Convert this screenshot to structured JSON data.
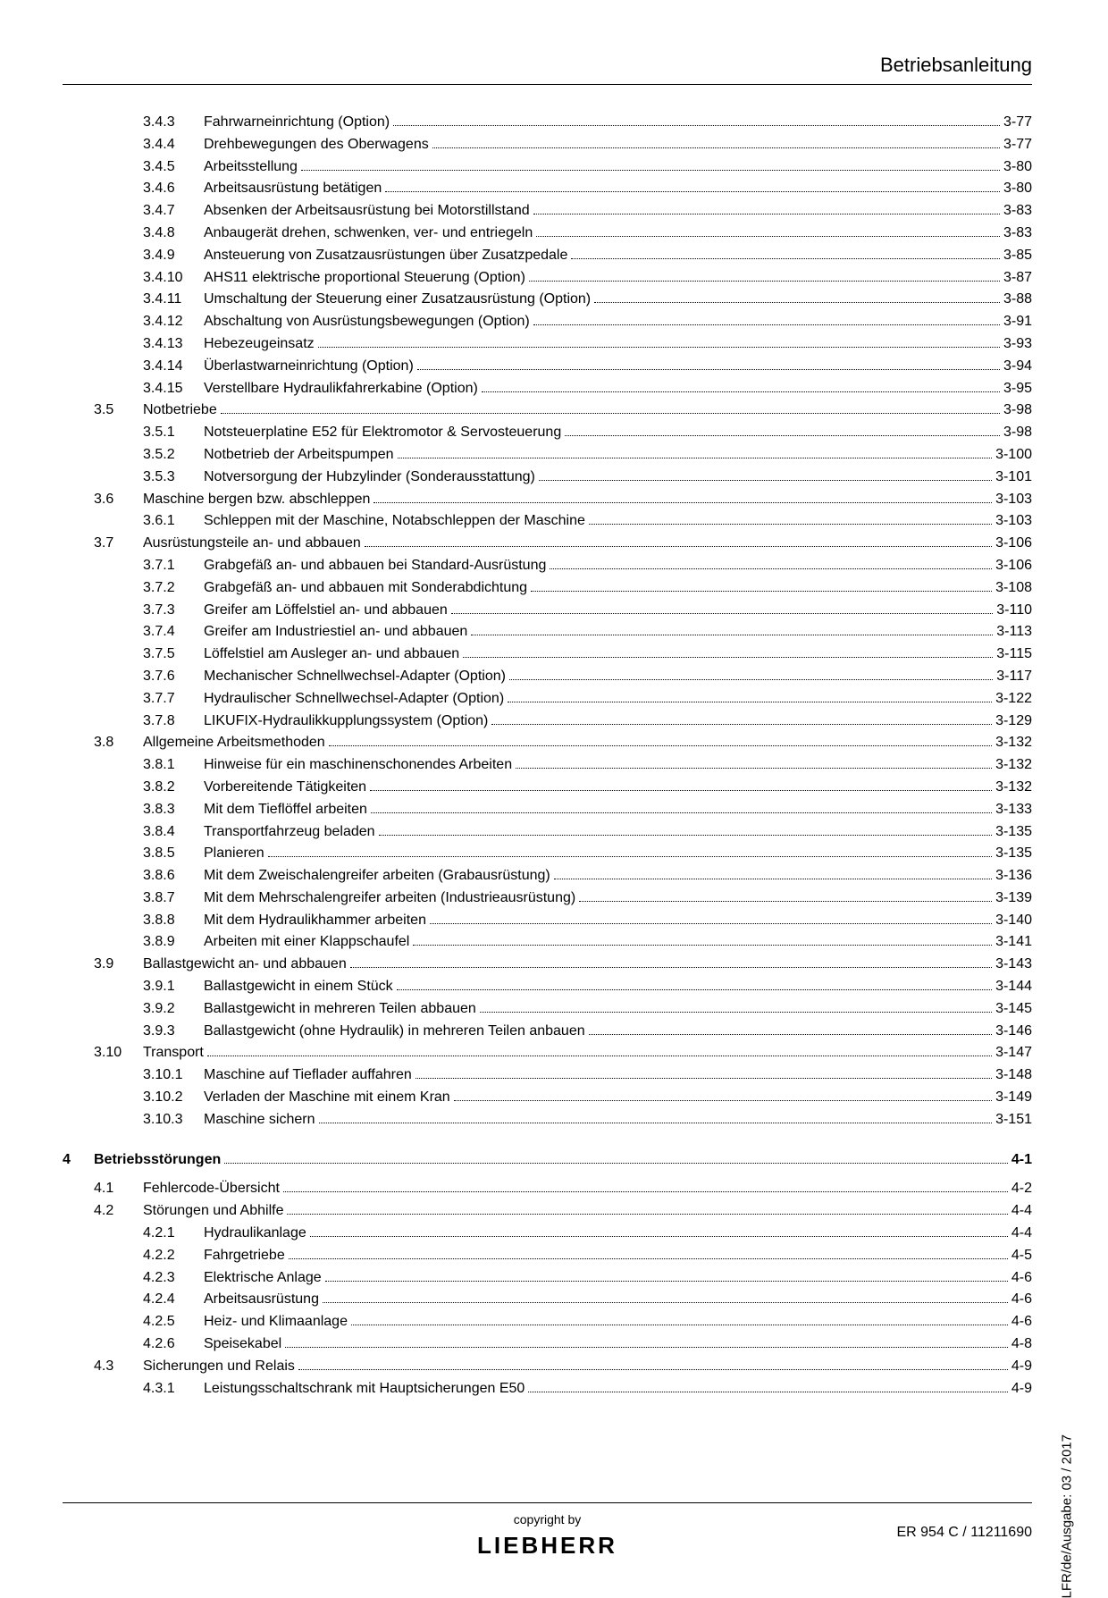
{
  "header_title": "Betriebsanleitung",
  "copyright": "copyright by",
  "logo": "LIEBHERR",
  "docref": "ER 954 C / 11211690",
  "sidelabel": "LFR/de/Ausgabe: 03 / 2017",
  "chapter4_num": "4",
  "chapter4_title": "Betriebsstörungen",
  "chapter4_page": "4-1",
  "entries": [
    {
      "sub": "3.4.3",
      "t": "Fahrwarneinrichtung (Option)",
      "p": "3-77"
    },
    {
      "sub": "3.4.4",
      "t": "Drehbewegungen des Oberwagens",
      "p": "3-77"
    },
    {
      "sub": "3.4.5",
      "t": "Arbeitsstellung",
      "p": "3-80"
    },
    {
      "sub": "3.4.6",
      "t": "Arbeitsausrüstung betätigen",
      "p": "3-80"
    },
    {
      "sub": "3.4.7",
      "t": "Absenken der Arbeitsausrüstung bei Motorstillstand",
      "p": "3-83"
    },
    {
      "sub": "3.4.8",
      "t": "Anbaugerät drehen, schwenken, ver- und entriegeln",
      "p": "3-83"
    },
    {
      "sub": "3.4.9",
      "t": "Ansteuerung von Zusatzausrüstungen über Zusatzpedale",
      "p": "3-85"
    },
    {
      "sub": "3.4.10",
      "t": "AHS11 elektrische proportional Steuerung (Option)",
      "p": "3-87"
    },
    {
      "sub": "3.4.11",
      "t": "Umschaltung der Steuerung einer Zusatzausrüstung (Option)",
      "p": "3-88"
    },
    {
      "sub": "3.4.12",
      "t": "Abschaltung von Ausrüstungsbewegungen (Option)",
      "p": "3-91"
    },
    {
      "sub": "3.4.13",
      "t": "Hebezeugeinsatz",
      "p": "3-93"
    },
    {
      "sub": "3.4.14",
      "t": "Überlastwarneinrichtung (Option)",
      "p": "3-94"
    },
    {
      "sub": "3.4.15",
      "t": "Verstellbare Hydraulikfahrerkabine (Option)",
      "p": "3-95"
    },
    {
      "sec": "3.5",
      "t": "Notbetriebe",
      "p": "3-98"
    },
    {
      "sub": "3.5.1",
      "t": "Notsteuerplatine E52 für Elektromotor & Servosteuerung",
      "p": "3-98"
    },
    {
      "sub": "3.5.2",
      "t": "Notbetrieb der Arbeitspumpen",
      "p": "3-100"
    },
    {
      "sub": "3.5.3",
      "t": "Notversorgung der Hubzylinder (Sonderausstattung)",
      "p": "3-101"
    },
    {
      "sec": "3.6",
      "t": "Maschine bergen bzw. abschleppen",
      "p": "3-103"
    },
    {
      "sub": "3.6.1",
      "t": "Schleppen mit der Maschine, Notabschleppen der Maschine",
      "p": "3-103"
    },
    {
      "sec": "3.7",
      "t": "Ausrüstungsteile an- und abbauen",
      "p": "3-106"
    },
    {
      "sub": "3.7.1",
      "t": "Grabgefäß an- und abbauen bei Standard-Ausrüstung",
      "p": "3-106"
    },
    {
      "sub": "3.7.2",
      "t": "Grabgefäß an- und abbauen mit Sonderabdichtung",
      "p": "3-108"
    },
    {
      "sub": "3.7.3",
      "t": "Greifer am Löffelstiel an- und abbauen",
      "p": "3-110"
    },
    {
      "sub": "3.7.4",
      "t": "Greifer am Industriestiel an- und abbauen",
      "p": "3-113"
    },
    {
      "sub": "3.7.5",
      "t": "Löffelstiel am Ausleger an- und abbauen",
      "p": "3-115"
    },
    {
      "sub": "3.7.6",
      "t": "Mechanischer Schnellwechsel-Adapter (Option)",
      "p": "3-117"
    },
    {
      "sub": "3.7.7",
      "t": "Hydraulischer Schnellwechsel-Adapter (Option)",
      "p": "3-122"
    },
    {
      "sub": "3.7.8",
      "t": "LIKUFIX-Hydraulikkupplungssystem (Option)",
      "p": "3-129"
    },
    {
      "sec": "3.8",
      "t": "Allgemeine Arbeitsmethoden",
      "p": "3-132"
    },
    {
      "sub": "3.8.1",
      "t": "Hinweise für ein maschinenschonendes Arbeiten",
      "p": "3-132"
    },
    {
      "sub": "3.8.2",
      "t": "Vorbereitende Tätigkeiten",
      "p": "3-132"
    },
    {
      "sub": "3.8.3",
      "t": "Mit dem Tieflöffel arbeiten",
      "p": "3-133"
    },
    {
      "sub": "3.8.4",
      "t": "Transportfahrzeug beladen",
      "p": "3-135"
    },
    {
      "sub": "3.8.5",
      "t": "Planieren",
      "p": "3-135"
    },
    {
      "sub": "3.8.6",
      "t": "Mit dem Zweischalengreifer arbeiten (Grabausrüstung)",
      "p": "3-136"
    },
    {
      "sub": "3.8.7",
      "t": "Mit dem Mehrschalengreifer arbeiten (Industrieausrüstung)",
      "p": "3-139"
    },
    {
      "sub": "3.8.8",
      "t": "Mit dem Hydraulikhammer arbeiten",
      "p": "3-140"
    },
    {
      "sub": "3.8.9",
      "t": "Arbeiten mit einer Klappschaufel",
      "p": "3-141"
    },
    {
      "sec": "3.9",
      "t": "Ballastgewicht an- und abbauen",
      "p": "3-143"
    },
    {
      "sub": "3.9.1",
      "t": "Ballastgewicht in einem Stück",
      "p": "3-144"
    },
    {
      "sub": "3.9.2",
      "t": "Ballastgewicht in mehreren Teilen abbauen",
      "p": "3-145"
    },
    {
      "sub": "3.9.3",
      "t": "Ballastgewicht (ohne Hydraulik) in mehreren Teilen anbauen",
      "p": "3-146"
    },
    {
      "sec": "3.10",
      "t": "Transport",
      "p": "3-147"
    },
    {
      "sub": "3.10.1",
      "t": "Maschine auf Tieflader auffahren",
      "p": "3-148"
    },
    {
      "sub": "3.10.2",
      "t": "Verladen der Maschine mit einem Kran",
      "p": "3-149"
    },
    {
      "sub": "3.10.3",
      "t": "Maschine sichern",
      "p": "3-151"
    }
  ],
  "entries4": [
    {
      "sec": "4.1",
      "t": "Fehlercode-Übersicht",
      "p": "4-2"
    },
    {
      "sec": "4.2",
      "t": "Störungen und Abhilfe",
      "p": "4-4"
    },
    {
      "sub": "4.2.1",
      "t": "Hydraulikanlage",
      "p": "4-4"
    },
    {
      "sub": "4.2.2",
      "t": "Fahrgetriebe",
      "p": "4-5"
    },
    {
      "sub": "4.2.3",
      "t": "Elektrische Anlage",
      "p": "4-6"
    },
    {
      "sub": "4.2.4",
      "t": "Arbeitsausrüstung",
      "p": "4-6"
    },
    {
      "sub": "4.2.5",
      "t": "Heiz- und Klimaanlage",
      "p": "4-6"
    },
    {
      "sub": "4.2.6",
      "t": "Speisekabel",
      "p": "4-8"
    },
    {
      "sec": "4.3",
      "t": "Sicherungen und Relais",
      "p": "4-9"
    },
    {
      "sub": "4.3.1",
      "t": "Leistungsschaltschrank mit Hauptsicherungen E50",
      "p": "4-9"
    }
  ]
}
